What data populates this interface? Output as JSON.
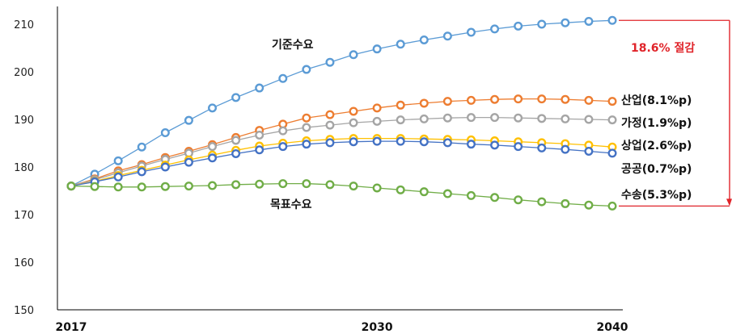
{
  "chart_data": {
    "type": "line",
    "x": [
      2017,
      2018,
      2019,
      2020,
      2021,
      2022,
      2023,
      2024,
      2025,
      2026,
      2027,
      2028,
      2029,
      2030,
      2031,
      2032,
      2033,
      2034,
      2035,
      2036,
      2037,
      2038,
      2039,
      2040
    ],
    "xticks": [
      "2017",
      "2030",
      "2040"
    ],
    "xtick_values": [
      2017,
      2030,
      2040
    ],
    "ylim": [
      150,
      215
    ],
    "yticks": [
      150,
      160,
      170,
      180,
      190,
      200,
      210
    ],
    "grid": false,
    "series": [
      {
        "name": "기준수요",
        "color": "#5b9bd5",
        "values": [
          176.0,
          178.5,
          181.3,
          184.2,
          187.2,
          189.8,
          192.4,
          194.6,
          196.6,
          198.6,
          200.5,
          202.0,
          203.6,
          204.8,
          205.8,
          206.7,
          207.5,
          208.3,
          209.0,
          209.6,
          210.0,
          210.3,
          210.6,
          210.8
        ]
      },
      {
        "name": "산업(8.1%p)",
        "color": "#ed7d31",
        "values": [
          176.0,
          177.5,
          179.2,
          180.5,
          182.0,
          183.3,
          184.7,
          186.2,
          187.7,
          189.0,
          190.3,
          191.0,
          191.7,
          192.4,
          193.0,
          193.4,
          193.8,
          194.0,
          194.2,
          194.3,
          194.3,
          194.2,
          194.0,
          193.8
        ]
      },
      {
        "name": "가정(1.9%p)",
        "color": "#a5a5a5",
        "values": [
          176.0,
          177.3,
          178.8,
          180.2,
          181.6,
          182.9,
          184.3,
          185.6,
          186.7,
          187.6,
          188.3,
          188.8,
          189.3,
          189.6,
          189.9,
          190.1,
          190.3,
          190.4,
          190.4,
          190.3,
          190.2,
          190.1,
          190.0,
          189.9
        ]
      },
      {
        "name": "상업(2.6%p)",
        "color": "#ffc000",
        "values": [
          176.0,
          177.0,
          178.2,
          179.3,
          180.4,
          181.5,
          182.5,
          183.5,
          184.4,
          185.0,
          185.5,
          185.8,
          186.0,
          186.0,
          186.0,
          185.9,
          185.8,
          185.7,
          185.5,
          185.3,
          185.1,
          184.9,
          184.6,
          184.2
        ]
      },
      {
        "name": "공공(0.7%p)",
        "color": "#4472c4",
        "values": [
          176.0,
          176.9,
          177.9,
          179.0,
          180.0,
          181.0,
          181.9,
          182.8,
          183.6,
          184.3,
          184.8,
          185.1,
          185.3,
          185.4,
          185.4,
          185.3,
          185.1,
          184.8,
          184.6,
          184.3,
          184.0,
          183.7,
          183.3,
          182.9
        ]
      },
      {
        "name": "수송(5.3%p)",
        "color": "#70ad47",
        "values": [
          176.0,
          175.9,
          175.8,
          175.8,
          175.9,
          176.0,
          176.1,
          176.3,
          176.4,
          176.5,
          176.5,
          176.3,
          176.0,
          175.6,
          175.2,
          174.8,
          174.4,
          174.0,
          173.6,
          173.1,
          172.7,
          172.3,
          172.0,
          171.8
        ]
      }
    ],
    "annotations": {
      "baseline_label": "기준수요",
      "target_label": "목표수요",
      "reduction_label": "18.6% 절감"
    }
  },
  "colors": {
    "annotation": "#e0242a",
    "axis": "#000000"
  }
}
